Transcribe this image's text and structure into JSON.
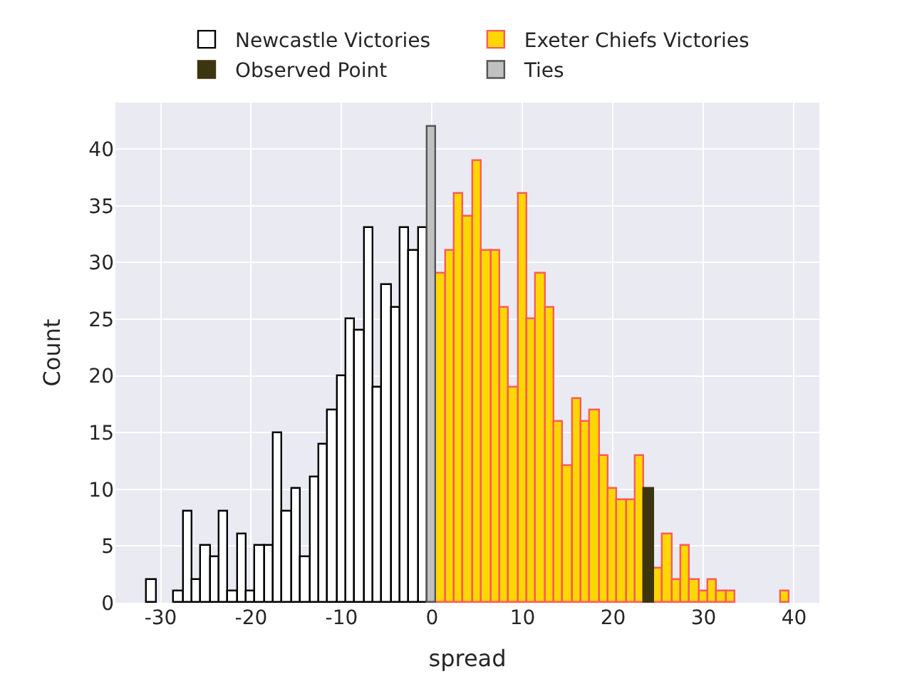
{
  "chart_data": {
    "type": "histogram",
    "xlabel": "spread",
    "ylabel": "Count",
    "bins": [
      -31.5,
      -30.5,
      -29.5,
      -28.5,
      -27.5,
      -26.5,
      -25.5,
      -24.5,
      -23.5,
      -22.5,
      -21.5,
      -20.5,
      -19.5,
      -18.5,
      -17.5,
      -16.5,
      -15.5,
      -14.5,
      -13.5,
      -12.5,
      -11.5,
      -10.5,
      -9.5,
      -8.5,
      -7.5,
      -6.5,
      -5.5,
      -4.5,
      -3.5,
      -2.5,
      -1.5,
      -0.5,
      0.5,
      1.5,
      2.5,
      3.5,
      4.5,
      5.5,
      6.5,
      7.5,
      8.5,
      9.5,
      10.5,
      11.5,
      12.5,
      13.5,
      14.5,
      15.5,
      16.5,
      17.5,
      18.5,
      19.5,
      20.5,
      21.5,
      22.5,
      23.5,
      24.5,
      25.5,
      26.5,
      27.5,
      28.5,
      29.5,
      30.5,
      31.5,
      32.5,
      33.5,
      34.5,
      35.5,
      36.5,
      37.5,
      38.5,
      39.5
    ],
    "series": [
      {
        "name": "Newcastle Victories",
        "color": "#ffffff",
        "values": [
          2,
          0,
          0,
          1,
          8,
          2,
          5,
          4,
          8,
          1,
          6,
          1,
          5,
          5,
          15,
          8,
          10,
          4,
          11,
          14,
          17,
          20,
          25,
          24,
          33,
          19,
          28,
          26,
          33,
          31,
          33,
          null,
          null,
          null,
          null,
          null,
          null,
          null,
          null,
          null,
          null,
          null,
          null,
          null,
          null,
          null,
          null,
          null,
          null,
          null,
          null,
          null,
          null,
          null,
          null,
          null,
          null,
          null,
          null,
          null,
          null,
          null,
          null,
          null,
          null,
          null,
          null,
          null,
          null,
          null,
          null
        ]
      },
      {
        "name": "Exeter Chiefs Victories",
        "color": "#ffd700",
        "values": [
          null,
          null,
          null,
          null,
          null,
          null,
          null,
          null,
          null,
          null,
          null,
          null,
          null,
          null,
          null,
          null,
          null,
          null,
          null,
          null,
          null,
          null,
          null,
          null,
          null,
          null,
          null,
          null,
          null,
          null,
          null,
          null,
          29,
          31,
          36,
          34,
          39,
          31,
          31,
          26,
          19,
          36,
          25,
          29,
          26,
          16,
          12,
          18,
          16,
          17,
          13,
          10,
          9,
          9,
          13,
          null,
          3,
          6,
          2,
          5,
          2,
          1,
          2,
          1,
          1,
          0,
          0,
          0,
          0,
          0,
          1
        ]
      },
      {
        "name": "Observed Point",
        "color": "#3d3510",
        "values": [
          null,
          null,
          null,
          null,
          null,
          null,
          null,
          null,
          null,
          null,
          null,
          null,
          null,
          null,
          null,
          null,
          null,
          null,
          null,
          null,
          null,
          null,
          null,
          null,
          null,
          null,
          null,
          null,
          null,
          null,
          null,
          null,
          null,
          null,
          null,
          null,
          null,
          null,
          null,
          null,
          null,
          null,
          null,
          null,
          null,
          null,
          null,
          null,
          null,
          null,
          null,
          null,
          null,
          null,
          null,
          10,
          null,
          null,
          null,
          null,
          null,
          null,
          null,
          null,
          null,
          null,
          null,
          null,
          null,
          null,
          null
        ]
      },
      {
        "name": "Ties",
        "color": "#c0c0c0",
        "values": [
          null,
          null,
          null,
          null,
          null,
          null,
          null,
          null,
          null,
          null,
          null,
          null,
          null,
          null,
          null,
          null,
          null,
          null,
          null,
          null,
          null,
          null,
          null,
          null,
          null,
          null,
          null,
          null,
          null,
          null,
          null,
          42,
          null,
          null,
          null,
          null,
          null,
          null,
          null,
          null,
          null,
          null,
          null,
          null,
          null,
          null,
          null,
          null,
          null,
          null,
          null,
          null,
          null,
          null,
          null,
          null,
          null,
          null,
          null,
          null,
          null,
          null,
          null,
          null,
          null,
          null,
          null,
          null,
          null,
          null,
          null
        ]
      }
    ],
    "xlim": [
      -35,
      42.8
    ],
    "ylim": [
      0,
      44.1
    ],
    "xticks": [
      -30,
      -20,
      -10,
      0,
      10,
      20,
      30,
      40
    ],
    "yticks": [
      0,
      5,
      10,
      15,
      20,
      25,
      30,
      35,
      40
    ],
    "grid": true,
    "legend": "top"
  }
}
